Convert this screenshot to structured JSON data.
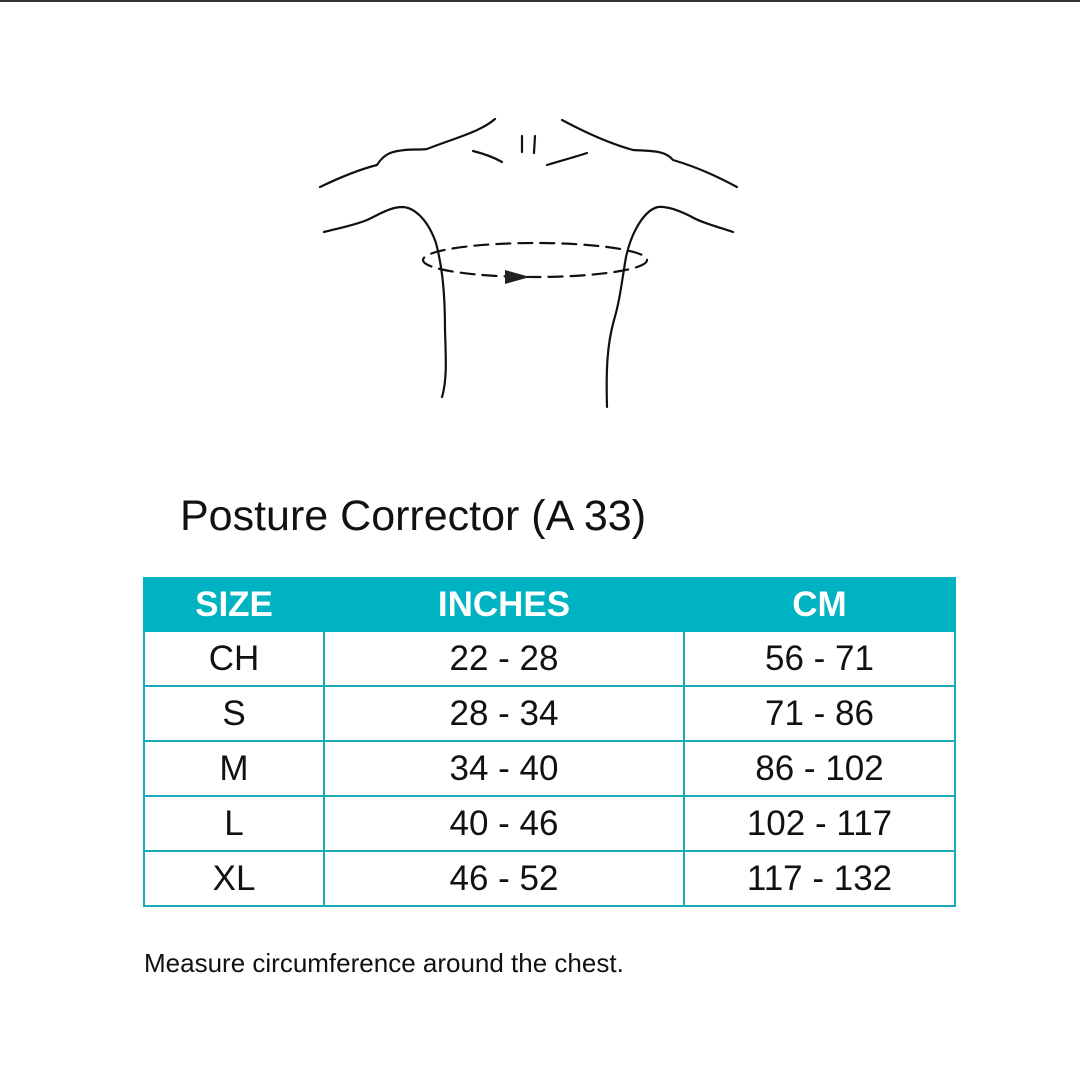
{
  "title": "Posture Corrector (A 33)",
  "table": {
    "headers": [
      "SIZE",
      "INCHES",
      "CM"
    ],
    "rows": [
      [
        "CH",
        "22 - 28",
        "56 - 71"
      ],
      [
        "S",
        "28 - 34",
        "71 - 86"
      ],
      [
        "M",
        "34 - 40",
        "86 - 102"
      ],
      [
        "L",
        "40 - 46",
        "102 - 117"
      ],
      [
        "XL",
        "46 - 52",
        "117 - 132"
      ]
    ]
  },
  "note": "Measure circumference around the chest.",
  "colors": {
    "header": "#00b3c3",
    "border": "#1aabb8"
  }
}
